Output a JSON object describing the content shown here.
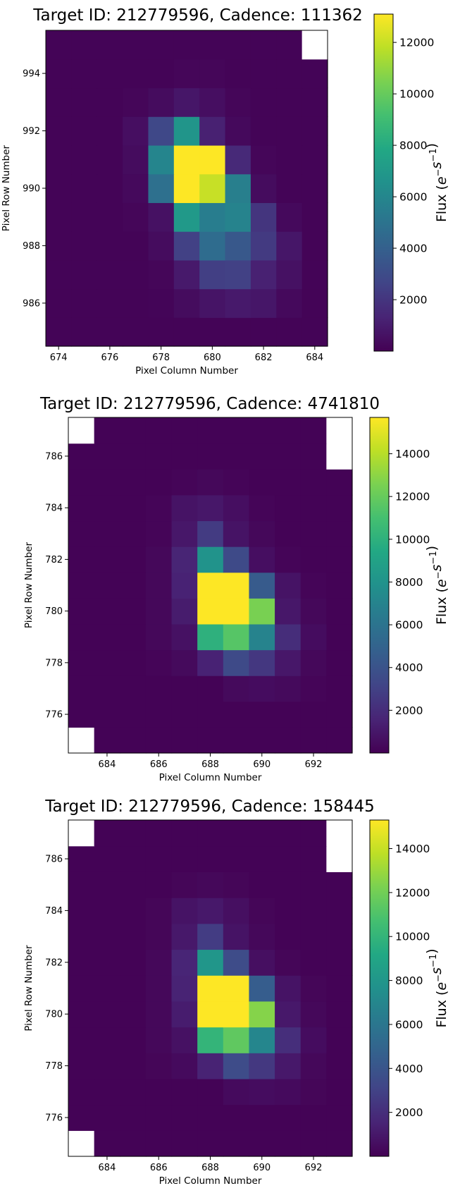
{
  "chart_data": [
    {
      "type": "heatmap",
      "title": "Target ID: 212779596, Cadence: 111362",
      "xlabel": "Pixel Column Number",
      "ylabel": "Pixel Row Number",
      "colorbar_label": "Flux ($e^{-}s^{-1}$)",
      "colorbar_ticks": [
        "2000",
        "4000",
        "6000",
        "8000",
        "10000",
        "12000"
      ],
      "xticks": [
        "674",
        "676",
        "678",
        "680",
        "682",
        "684"
      ],
      "yticks": [
        "986",
        "988",
        "990",
        "992",
        "994"
      ],
      "xlim": [
        673.5,
        684.5
      ],
      "ylim": [
        984.5,
        995.5
      ],
      "vlim": [
        0,
        13100
      ],
      "x0": 674,
      "y0": 985,
      "nx": 11,
      "ny": 11,
      "colormap": "viridis",
      "hot_cells_note": "row-major from bottom row (985) to top row (995); null = masked (white)",
      "values": [
        [
          100,
          100,
          100,
          100,
          100,
          100,
          100,
          100,
          100,
          100,
          100
        ],
        [
          100,
          100,
          100,
          100,
          150,
          400,
          700,
          900,
          800,
          300,
          100
        ],
        [
          100,
          100,
          100,
          100,
          200,
          900,
          2400,
          2500,
          1200,
          600,
          100
        ],
        [
          100,
          100,
          100,
          100,
          400,
          2500,
          4600,
          3600,
          2200,
          800,
          100
        ],
        [
          100,
          100,
          100,
          200,
          600,
          7000,
          5500,
          5800,
          2000,
          300,
          100
        ],
        [
          100,
          100,
          100,
          300,
          4800,
          13100,
          12000,
          5600,
          400,
          100,
          100
        ],
        [
          100,
          100,
          100,
          400,
          5900,
          13100,
          13100,
          1500,
          200,
          100,
          100
        ],
        [
          100,
          100,
          100,
          500,
          2800,
          6800,
          1200,
          300,
          100,
          100,
          100
        ],
        [
          100,
          100,
          100,
          200,
          400,
          800,
          500,
          200,
          100,
          100,
          100
        ],
        [
          100,
          100,
          100,
          100,
          100,
          200,
          200,
          100,
          100,
          100,
          100
        ],
        [
          100,
          100,
          100,
          100,
          100,
          100,
          100,
          100,
          100,
          100,
          null
        ]
      ]
    },
    {
      "type": "heatmap",
      "title": "Target ID: 212779596, Cadence: 4741810",
      "xlabel": "Pixel Column Number",
      "ylabel": "Pixel Row Number",
      "colorbar_label": "Flux ($e^{-}s^{-1}$)",
      "colorbar_ticks": [
        "2000",
        "4000",
        "6000",
        "8000",
        "10000",
        "12000",
        "14000"
      ],
      "xticks": [
        "684",
        "686",
        "688",
        "690",
        "692"
      ],
      "yticks": [
        "776",
        "778",
        "780",
        "782",
        "784",
        "786"
      ],
      "xlim": [
        682.5,
        693.5
      ],
      "ylim": [
        774.5,
        787.5
      ],
      "vlim": [
        0,
        15700
      ],
      "x0": 683,
      "y0": 775,
      "nx": 11,
      "ny": 13,
      "colormap": "viridis",
      "values": [
        [
          null,
          100,
          100,
          100,
          100,
          100,
          100,
          100,
          100,
          100,
          100
        ],
        [
          100,
          100,
          100,
          100,
          100,
          100,
          100,
          100,
          100,
          100,
          100
        ],
        [
          100,
          100,
          100,
          100,
          100,
          100,
          400,
          500,
          400,
          200,
          100
        ],
        [
          100,
          100,
          100,
          200,
          400,
          1500,
          3500,
          2500,
          1000,
          300,
          100
        ],
        [
          100,
          100,
          100,
          300,
          700,
          10000,
          11500,
          7000,
          2000,
          500,
          100
        ],
        [
          100,
          100,
          100,
          300,
          1200,
          15700,
          15700,
          12500,
          1000,
          300,
          100
        ],
        [
          100,
          100,
          100,
          300,
          1500,
          15700,
          15700,
          4500,
          800,
          200,
          100
        ],
        [
          100,
          100,
          100,
          300,
          1600,
          8000,
          3500,
          600,
          200,
          100,
          100
        ],
        [
          100,
          100,
          100,
          200,
          1000,
          2700,
          800,
          300,
          100,
          100,
          100
        ],
        [
          100,
          100,
          100,
          200,
          800,
          1000,
          600,
          200,
          100,
          100,
          100
        ],
        [
          100,
          100,
          100,
          100,
          200,
          300,
          200,
          100,
          100,
          100,
          100
        ],
        [
          100,
          100,
          100,
          100,
          100,
          100,
          100,
          100,
          100,
          100,
          null
        ],
        [
          null,
          100,
          100,
          100,
          100,
          100,
          100,
          100,
          100,
          100,
          null
        ]
      ]
    },
    {
      "type": "heatmap",
      "title": "Target ID: 212779596, Cadence: 158445",
      "xlabel": "Pixel Column Number",
      "ylabel": "Pixel Row Number",
      "colorbar_label": "Flux ($e^{-}s^{-1}$)",
      "colorbar_ticks": [
        "2000",
        "4000",
        "6000",
        "8000",
        "10000",
        "12000",
        "14000"
      ],
      "xticks": [
        "684",
        "686",
        "688",
        "690",
        "692"
      ],
      "yticks": [
        "776",
        "778",
        "780",
        "782",
        "784",
        "786"
      ],
      "xlim": [
        682.5,
        693.5
      ],
      "ylim": [
        774.5,
        787.5
      ],
      "vlim": [
        0,
        15300
      ],
      "x0": 683,
      "y0": 775,
      "nx": 11,
      "ny": 13,
      "colormap": "viridis",
      "values": [
        [
          null,
          100,
          100,
          100,
          100,
          100,
          100,
          100,
          100,
          100,
          100
        ],
        [
          100,
          100,
          100,
          100,
          100,
          100,
          100,
          100,
          100,
          100,
          100
        ],
        [
          100,
          100,
          100,
          100,
          100,
          100,
          400,
          500,
          400,
          200,
          100
        ],
        [
          100,
          100,
          100,
          200,
          400,
          1500,
          3500,
          2500,
          1000,
          300,
          100
        ],
        [
          100,
          100,
          100,
          300,
          700,
          10000,
          11500,
          7000,
          2000,
          500,
          100
        ],
        [
          100,
          100,
          100,
          300,
          1200,
          15300,
          15300,
          12500,
          1000,
          300,
          100
        ],
        [
          100,
          100,
          100,
          300,
          1500,
          15300,
          15300,
          4500,
          800,
          200,
          100
        ],
        [
          100,
          100,
          100,
          300,
          1600,
          8000,
          3500,
          600,
          200,
          100,
          100
        ],
        [
          100,
          100,
          100,
          200,
          1000,
          2700,
          800,
          300,
          100,
          100,
          100
        ],
        [
          100,
          100,
          100,
          200,
          800,
          1000,
          600,
          200,
          100,
          100,
          100
        ],
        [
          100,
          100,
          100,
          100,
          200,
          300,
          200,
          100,
          100,
          100,
          100
        ],
        [
          100,
          100,
          100,
          100,
          100,
          100,
          100,
          100,
          100,
          100,
          null
        ],
        [
          null,
          100,
          100,
          100,
          100,
          100,
          100,
          100,
          100,
          100,
          null
        ]
      ]
    }
  ]
}
